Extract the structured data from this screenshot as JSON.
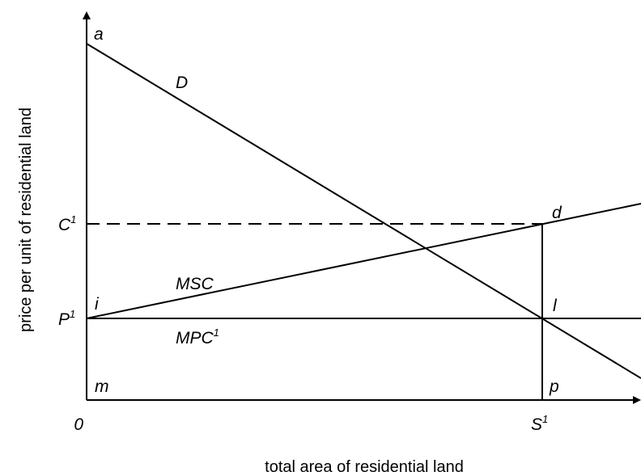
{
  "axes": {
    "y_title": "price per unit of residential land",
    "x_title": "total area of residential land",
    "origin_label": "0"
  },
  "ticks": {
    "c1": {
      "base": "C",
      "sup": "1"
    },
    "p1": {
      "base": "P",
      "sup": "1"
    },
    "s1": {
      "base": "S",
      "sup": "1"
    }
  },
  "curves": {
    "demand": "D",
    "msc": "MSC",
    "mpc": {
      "base": "MPC",
      "sup": "1"
    }
  },
  "points": {
    "a": "a",
    "d": "d",
    "i": "i",
    "l": "l",
    "m": "m",
    "p": "p"
  }
}
